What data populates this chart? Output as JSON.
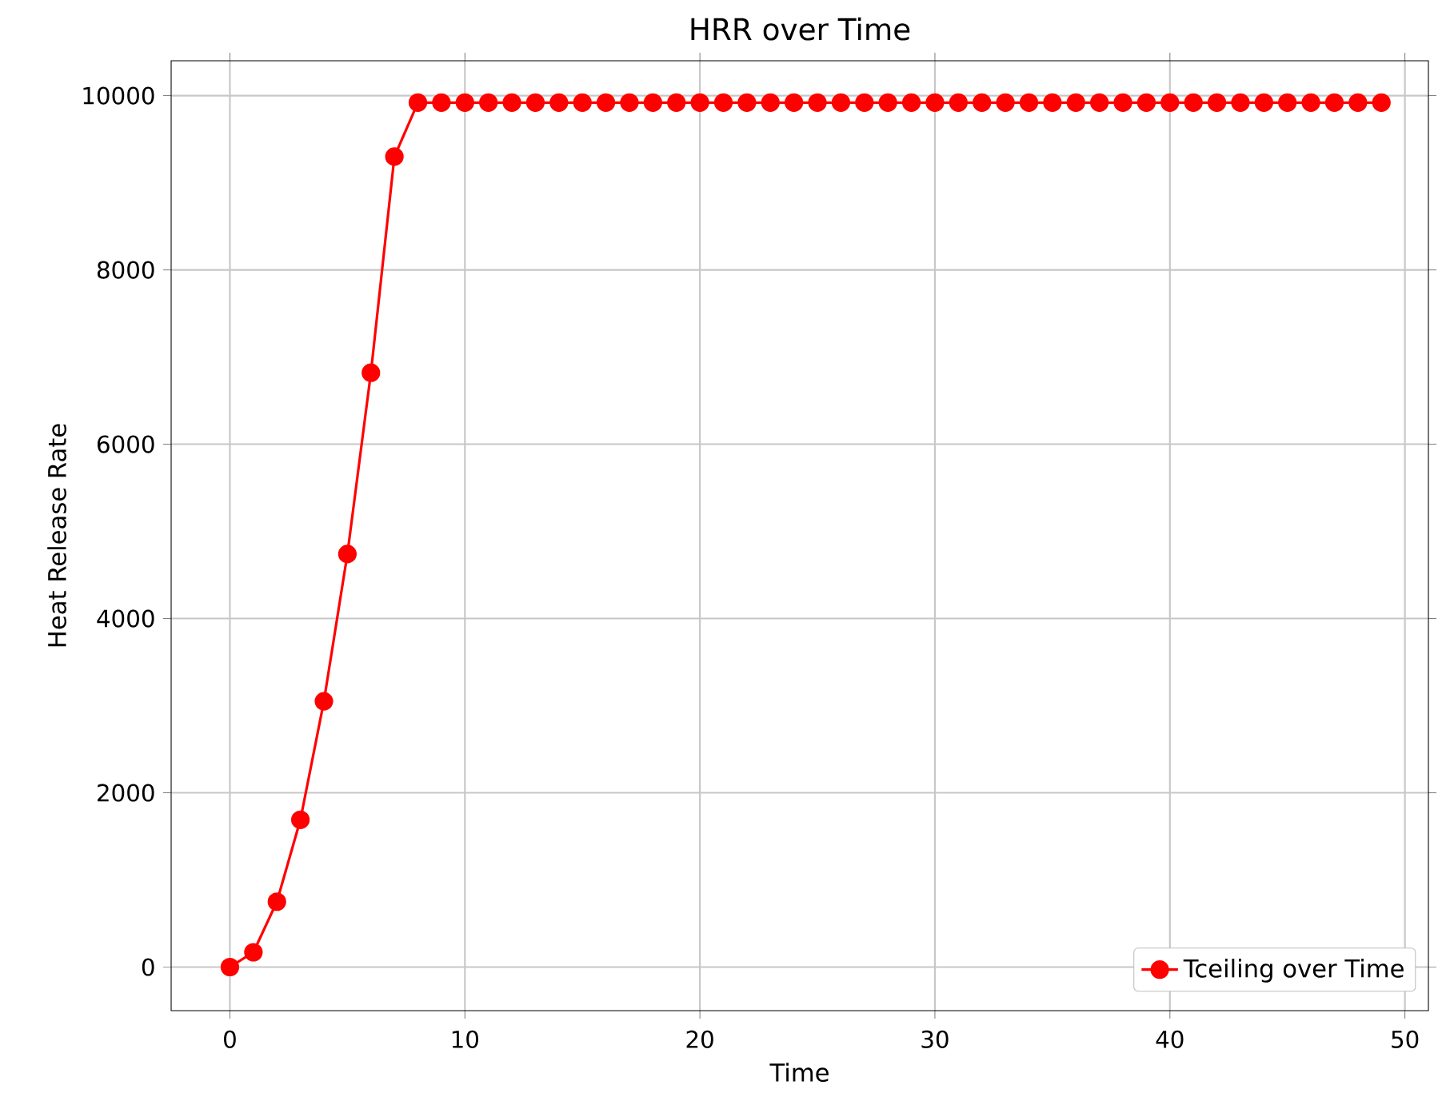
{
  "chart_data": {
    "type": "line",
    "title": "HRR over Time",
    "xlabel": "Time",
    "ylabel": "Heat Release Rate",
    "x": [
      0,
      1,
      2,
      3,
      4,
      5,
      6,
      7,
      8,
      9,
      10,
      11,
      12,
      13,
      14,
      15,
      16,
      17,
      18,
      19,
      20,
      21,
      22,
      23,
      24,
      25,
      26,
      27,
      28,
      29,
      30,
      31,
      32,
      33,
      34,
      35,
      36,
      37,
      38,
      39,
      40,
      41,
      42,
      43,
      44,
      45,
      46,
      47,
      48,
      49
    ],
    "series": [
      {
        "name": "Tceiling over Time",
        "color": "#ff0000",
        "values": [
          0,
          170,
          750,
          1690,
          3050,
          4740,
          6820,
          9300,
          9920,
          9920,
          9920,
          9920,
          9920,
          9920,
          9920,
          9920,
          9920,
          9920,
          9920,
          9920,
          9920,
          9920,
          9920,
          9920,
          9920,
          9920,
          9920,
          9920,
          9920,
          9920,
          9920,
          9920,
          9920,
          9920,
          9920,
          9920,
          9920,
          9920,
          9920,
          9920,
          9920,
          9920,
          9920,
          9920,
          9920,
          9920,
          9920,
          9920,
          9920,
          9920
        ]
      }
    ],
    "xlim": [
      -2.5,
      51
    ],
    "ylim": [
      -500,
      10400
    ],
    "xticks": [
      0,
      10,
      20,
      30,
      40,
      50
    ],
    "yticks": [
      0,
      2000,
      4000,
      6000,
      8000,
      10000
    ],
    "grid": true,
    "legend": "bottom right",
    "marker": "circle",
    "line_style": "solid"
  }
}
